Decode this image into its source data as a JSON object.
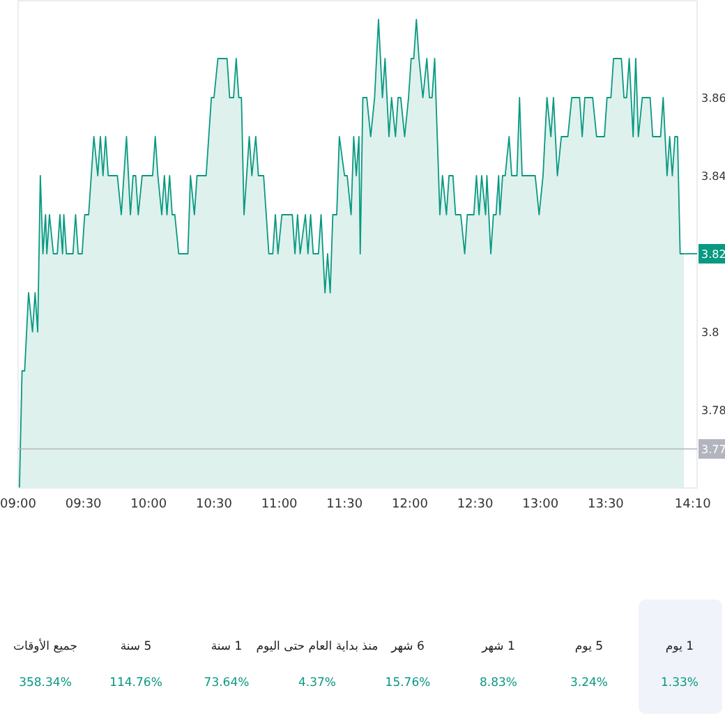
{
  "chart_data": {
    "type": "area",
    "color": "#089981",
    "marker": "none",
    "line_style": "solid",
    "grid": false,
    "x": [
      9.01,
      9.03,
      9.05,
      9.08,
      9.11,
      9.13,
      9.15,
      9.17,
      9.19,
      9.21,
      9.22,
      9.24,
      9.27,
      9.3,
      9.32,
      9.34,
      9.35,
      9.37,
      9.42,
      9.44,
      9.46,
      9.49,
      9.51,
      9.54,
      9.56,
      9.58,
      9.61,
      9.63,
      9.65,
      9.67,
      9.69,
      9.76,
      9.79,
      9.81,
      9.83,
      9.86,
      9.88,
      9.9,
      9.92,
      9.95,
      10.03,
      10.05,
      10.07,
      10.1,
      10.12,
      10.14,
      10.16,
      10.18,
      10.2,
      10.23,
      10.3,
      10.32,
      10.35,
      10.37,
      10.44,
      10.46,
      10.48,
      10.5,
      10.53,
      10.6,
      10.62,
      10.65,
      10.67,
      10.69,
      10.71,
      10.73,
      10.77,
      10.79,
      10.82,
      10.84,
      10.88,
      10.92,
      10.95,
      10.97,
      10.99,
      11.02,
      11.1,
      11.12,
      11.14,
      11.16,
      11.2,
      11.22,
      11.24,
      11.26,
      11.3,
      11.32,
      11.35,
      11.37,
      11.39,
      11.41,
      11.44,
      11.46,
      11.5,
      11.52,
      11.55,
      11.57,
      11.59,
      11.61,
      11.62,
      11.64,
      11.67,
      11.7,
      11.73,
      11.76,
      11.79,
      11.81,
      11.84,
      11.86,
      11.89,
      11.91,
      11.93,
      11.96,
      11.99,
      12.01,
      12.03,
      12.05,
      12.07,
      12.1,
      12.13,
      12.15,
      12.17,
      12.19,
      12.23,
      12.25,
      12.28,
      12.3,
      12.33,
      12.35,
      12.39,
      12.42,
      12.44,
      12.49,
      12.51,
      12.53,
      12.55,
      12.58,
      12.59,
      12.62,
      12.64,
      12.66,
      12.68,
      12.69,
      12.71,
      12.73,
      12.76,
      12.78,
      12.82,
      12.84,
      12.86,
      12.96,
      12.99,
      13.02,
      13.05,
      13.08,
      13.1,
      13.13,
      13.16,
      13.21,
      13.24,
      13.3,
      13.32,
      13.34,
      13.4,
      13.43,
      13.49,
      13.51,
      13.54,
      13.56,
      13.62,
      13.64,
      13.66,
      13.68,
      13.71,
      13.73,
      13.75,
      13.78,
      13.84,
      13.86,
      13.92,
      13.94,
      13.97,
      13.99,
      14.01,
      14.03,
      14.05,
      14.07,
      14.1
    ],
    "values": [
      3.76,
      3.79,
      3.79,
      3.81,
      3.8,
      3.81,
      3.8,
      3.84,
      3.82,
      3.83,
      3.82,
      3.83,
      3.82,
      3.82,
      3.83,
      3.82,
      3.83,
      3.82,
      3.82,
      3.83,
      3.82,
      3.82,
      3.83,
      3.83,
      3.84,
      3.85,
      3.84,
      3.85,
      3.84,
      3.85,
      3.84,
      3.84,
      3.83,
      3.84,
      3.85,
      3.83,
      3.84,
      3.84,
      3.83,
      3.84,
      3.84,
      3.85,
      3.84,
      3.83,
      3.84,
      3.83,
      3.84,
      3.83,
      3.83,
      3.82,
      3.82,
      3.84,
      3.83,
      3.84,
      3.84,
      3.85,
      3.86,
      3.86,
      3.87,
      3.87,
      3.86,
      3.86,
      3.87,
      3.86,
      3.86,
      3.83,
      3.85,
      3.84,
      3.85,
      3.84,
      3.84,
      3.82,
      3.82,
      3.83,
      3.82,
      3.83,
      3.83,
      3.82,
      3.83,
      3.82,
      3.83,
      3.82,
      3.83,
      3.82,
      3.82,
      3.83,
      3.81,
      3.82,
      3.81,
      3.83,
      3.83,
      3.85,
      3.84,
      3.84,
      3.83,
      3.85,
      3.84,
      3.85,
      3.82,
      3.86,
      3.86,
      3.85,
      3.86,
      3.88,
      3.86,
      3.87,
      3.85,
      3.86,
      3.85,
      3.86,
      3.86,
      3.85,
      3.86,
      3.87,
      3.87,
      3.88,
      3.87,
      3.86,
      3.87,
      3.86,
      3.86,
      3.87,
      3.83,
      3.84,
      3.83,
      3.84,
      3.84,
      3.83,
      3.83,
      3.82,
      3.83,
      3.83,
      3.84,
      3.83,
      3.84,
      3.83,
      3.84,
      3.82,
      3.83,
      3.83,
      3.84,
      3.83,
      3.84,
      3.84,
      3.85,
      3.84,
      3.84,
      3.86,
      3.84,
      3.84,
      3.83,
      3.84,
      3.86,
      3.85,
      3.86,
      3.84,
      3.85,
      3.85,
      3.86,
      3.86,
      3.85,
      3.86,
      3.86,
      3.85,
      3.85,
      3.86,
      3.86,
      3.87,
      3.87,
      3.86,
      3.86,
      3.87,
      3.85,
      3.87,
      3.85,
      3.86,
      3.86,
      3.85,
      3.85,
      3.86,
      3.84,
      3.85,
      3.84,
      3.85,
      3.85,
      3.82,
      3.82
    ],
    "xlim": [
      9,
      14.2
    ],
    "ylim": [
      3.76,
      3.885
    ],
    "xticks": [
      {
        "value": 9,
        "label": "09:00"
      },
      {
        "value": 9.5,
        "label": "09:30"
      },
      {
        "value": 10,
        "label": "10:00"
      },
      {
        "value": 10.5,
        "label": "10:30"
      },
      {
        "value": 11,
        "label": "11:00"
      },
      {
        "value": 11.5,
        "label": "11:30"
      },
      {
        "value": 12,
        "label": "12:00"
      },
      {
        "value": 12.5,
        "label": "12:30"
      },
      {
        "value": 13,
        "label": "13:00"
      },
      {
        "value": 13.5,
        "label": "13:30"
      },
      {
        "value": 14.1667,
        "label": "14:10"
      }
    ],
    "yticks": [
      3.78,
      3.8,
      3.84,
      3.86
    ],
    "ref_lines": [
      {
        "axis": "y",
        "value": 3.77,
        "label": "3.77",
        "color": "#b2b5be"
      }
    ],
    "annotations": [
      {
        "text": "3.82",
        "x": 14.1,
        "y": 3.82
      },
      "1 يوم",
      "1.33%",
      "5 يوم",
      "3.24%",
      "1 شهر",
      "8.83%",
      "6 شهر",
      "15.76%",
      "منذ بداية العام حتى اليوم",
      "4.37%",
      "1 سنة",
      "73.64%",
      "5 سنة",
      "114.76%",
      "جميع الأوقات",
      "358.34%"
    ]
  }
}
